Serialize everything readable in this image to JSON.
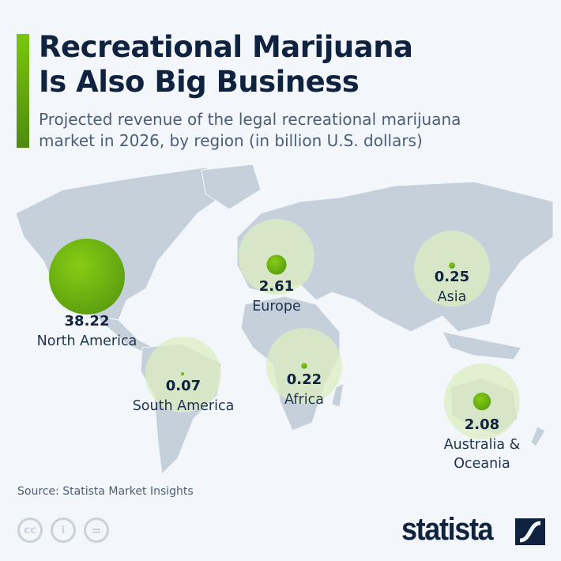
{
  "header": {
    "title_line1": "Recreational Marijuana",
    "title_line2": "Is Also Big Business",
    "subtitle_line1": "Projected revenue of the legal recreational marijuana",
    "subtitle_line2": "market in 2026, by region (in billion U.S. dollars)"
  },
  "chart_data": {
    "type": "bubble map",
    "unit": "billion U.S. dollars",
    "year": 2026,
    "regions": [
      {
        "name": "North America",
        "value": 38.22,
        "value_label": "38.22",
        "label_lines": [
          "North America"
        ]
      },
      {
        "name": "Europe",
        "value": 2.61,
        "value_label": "2.61",
        "label_lines": [
          "Europe"
        ]
      },
      {
        "name": "Asia",
        "value": 0.25,
        "value_label": "0.25",
        "label_lines": [
          "Asia"
        ]
      },
      {
        "name": "South America",
        "value": 0.07,
        "value_label": "0.07",
        "label_lines": [
          "South America"
        ]
      },
      {
        "name": "Africa",
        "value": 0.22,
        "value_label": "0.22",
        "label_lines": [
          "Africa"
        ]
      },
      {
        "name": "Australia & Oceania",
        "value": 2.08,
        "value_label": "2.08",
        "label_lines": [
          "Australia &",
          "Oceania"
        ]
      }
    ],
    "colors": {
      "bubble": "#6bb70c",
      "halo": "#dcedc0",
      "land": "#c6d0db",
      "background": "#f3f6fa"
    }
  },
  "footer": {
    "source": "Source: Statista Market Insights",
    "logo": "statista",
    "license_icons": [
      "cc-icon",
      "attribution-icon",
      "no-derivatives-icon"
    ]
  }
}
